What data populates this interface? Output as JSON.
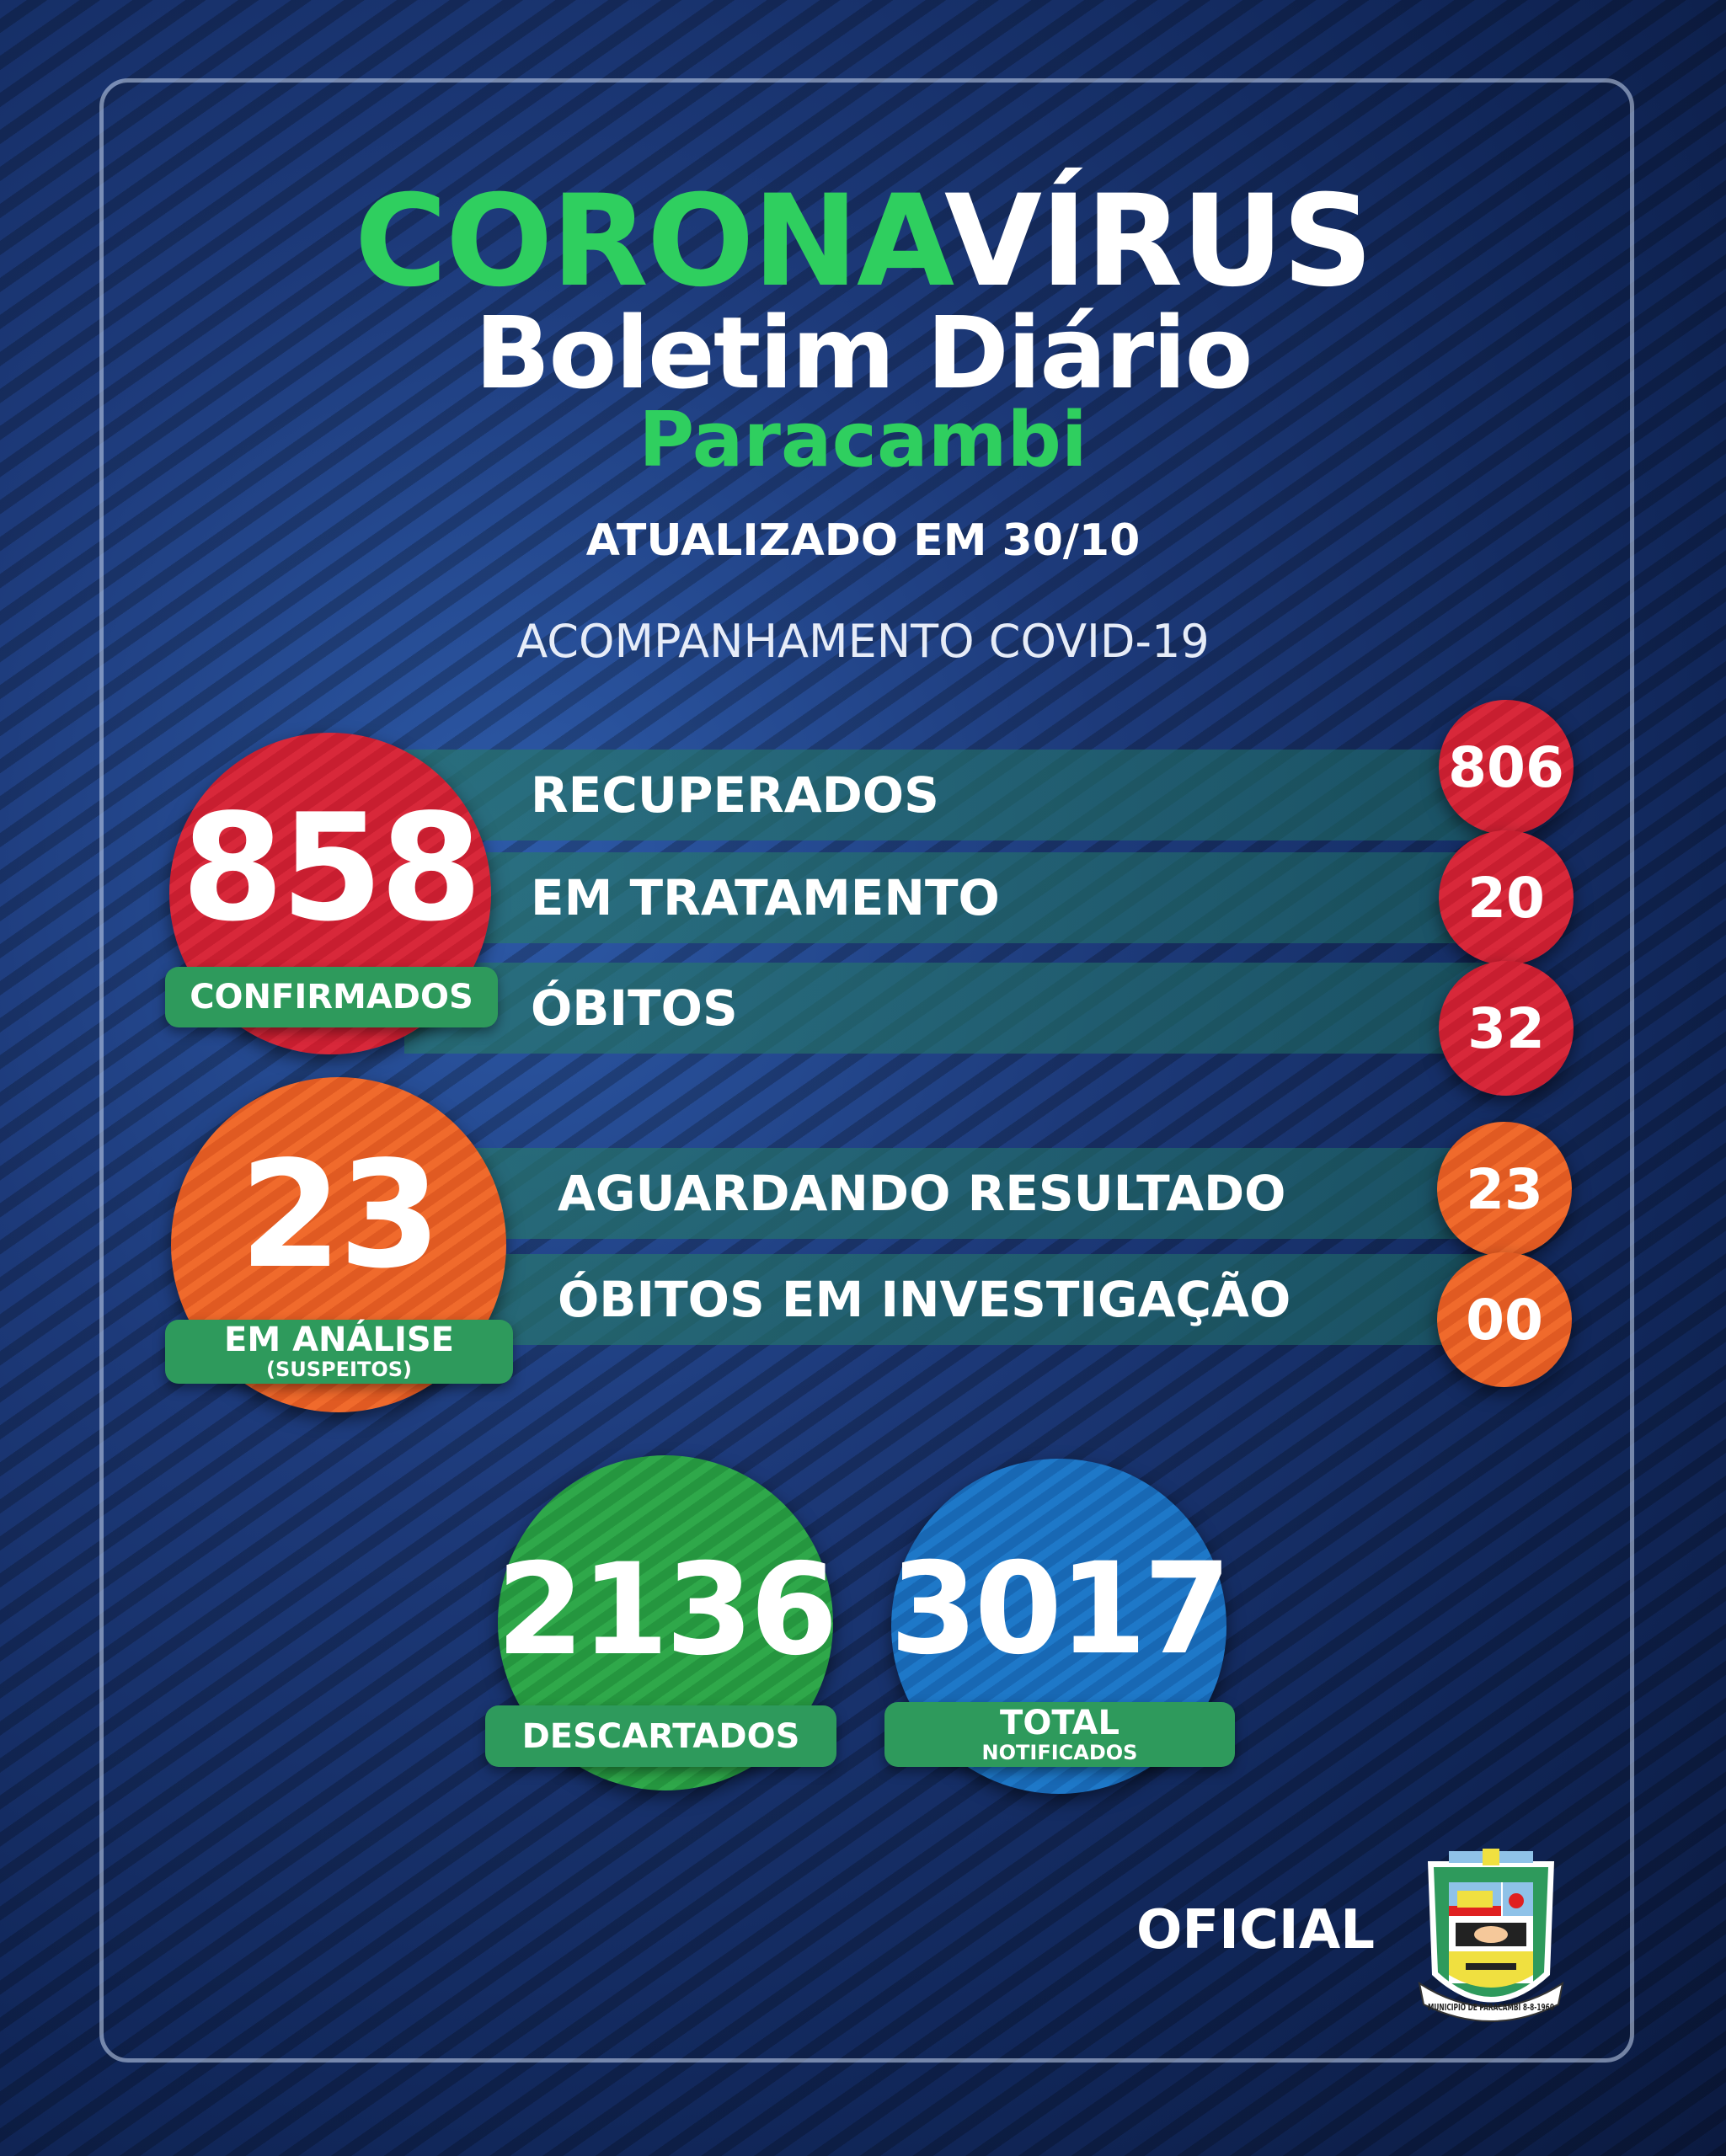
{
  "header": {
    "title_green": "CORONA",
    "title_white": "VÍRUS",
    "subtitle": "Boletim Diário",
    "city": "Paracambi",
    "updated": "ATUALIZADO EM 30/10",
    "section": "ACOMPANHAMENTO COVID-19"
  },
  "confirmed": {
    "value": "858",
    "label": "CONFIRMADOS",
    "rows": [
      {
        "label": "RECUPERADOS",
        "value": "806"
      },
      {
        "label": "EM TRATAMENTO",
        "value": "20"
      },
      {
        "label": "ÓBITOS",
        "value": "32"
      }
    ]
  },
  "analysis": {
    "value": "23",
    "label": "EM ANÁLISE",
    "sublabel": "(SUSPEITOS)",
    "rows": [
      {
        "label": "AGUARDANDO RESULTADO",
        "value": "23"
      },
      {
        "label": "ÓBITOS EM INVESTIGAÇÃO",
        "value": "00"
      }
    ]
  },
  "discarded": {
    "value": "2136",
    "label": "DESCARTADOS"
  },
  "notified": {
    "value": "3017",
    "label": "TOTAL",
    "sublabel": "NOTIFICADOS"
  },
  "footer": {
    "official": "OFICIAL",
    "coat_of_arms_text": "MUNICIPIO DE PARACAMBI 8-8-1960"
  },
  "colors": {
    "green": "#2fcf5f",
    "red": "#d8283a",
    "orange": "#f06a2c",
    "blue": "#1e78c8",
    "pill": "#2e9a5c"
  }
}
